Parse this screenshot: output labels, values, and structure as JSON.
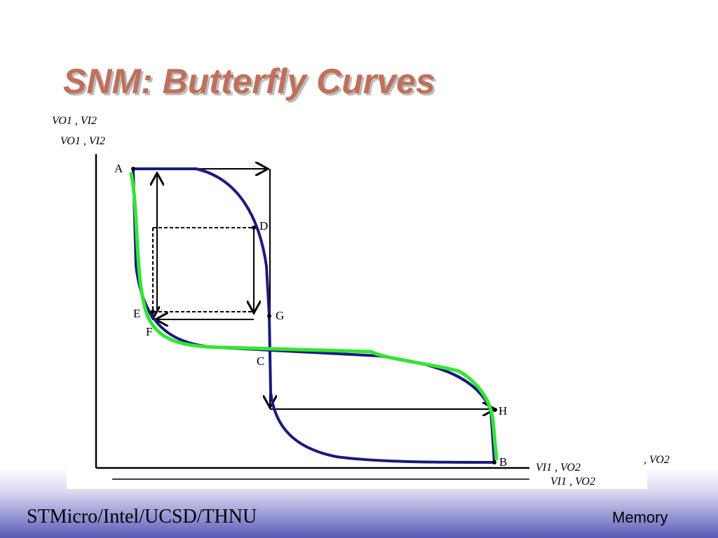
{
  "header": {
    "title": "SNM: Butterfly Curves"
  },
  "diagram": {
    "y_axis_labels": [
      "VO1 , VI2",
      "VO1 , VI2"
    ],
    "x_axis_labels": [
      "VI1 , VO2",
      "VI1 , VO2",
      ", VO2"
    ],
    "points": [
      "A",
      "B",
      "C",
      "D",
      "E",
      "F",
      "G",
      "H"
    ]
  },
  "footer": {
    "left": "STMicro/Intel/UCSD/THNU",
    "right": "Memory"
  }
}
